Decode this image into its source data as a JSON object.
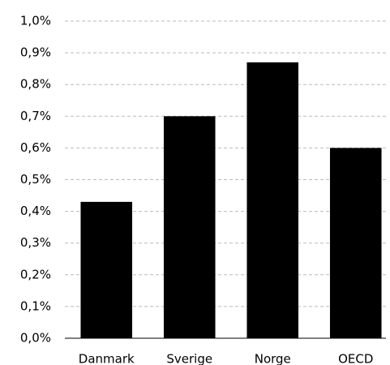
{
  "chart_data": {
    "type": "bar",
    "categories": [
      "Danmark",
      "Sverige",
      "Norge",
      "OECD"
    ],
    "values": [
      0.43,
      0.7,
      0.87,
      0.6
    ],
    "color": "#000000",
    "ylim": [
      0,
      1.0
    ],
    "yticks": [
      {
        "value": 0,
        "label": "0,0%"
      },
      {
        "value": 0.1,
        "label": "0,1%"
      },
      {
        "value": 0.2,
        "label": "0,2%"
      },
      {
        "value": 0.3,
        "label": "0,3%"
      },
      {
        "value": 0.4,
        "label": "0,4%"
      },
      {
        "value": 0.5,
        "label": "0,5%"
      },
      {
        "value": 0.6,
        "label": "0,6%"
      },
      {
        "value": 0.7,
        "label": "0,7%"
      },
      {
        "value": 0.8,
        "label": "0,8%"
      },
      {
        "value": 0.9,
        "label": "0,9%"
      },
      {
        "value": 1.0,
        "label": "1,0%"
      }
    ],
    "grid": true
  }
}
